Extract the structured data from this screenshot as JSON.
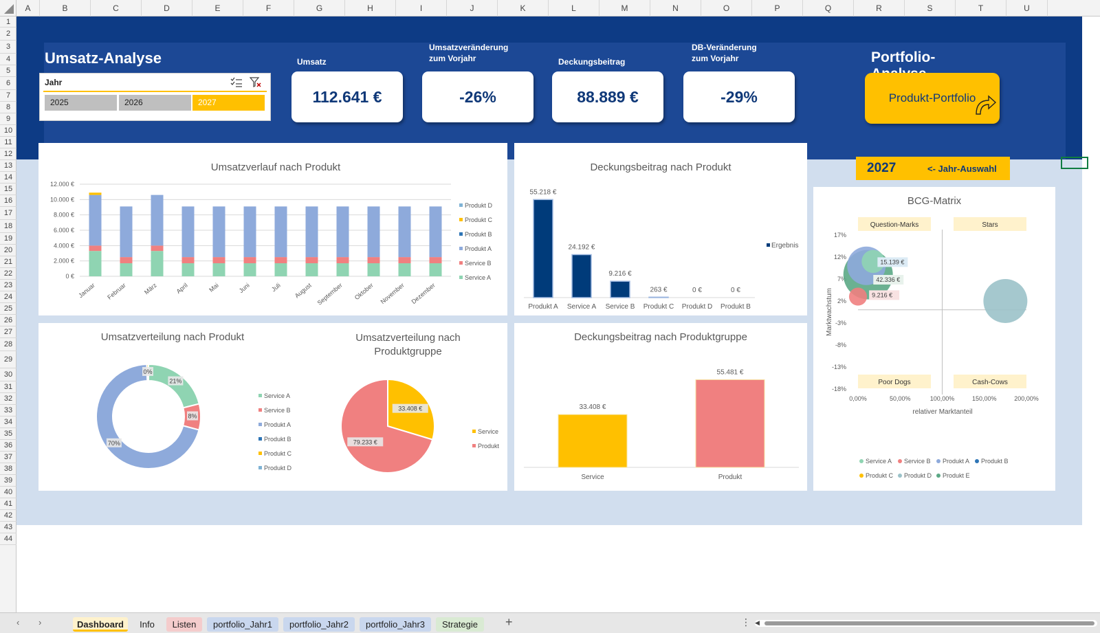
{
  "columns": [
    "A",
    "B",
    "C",
    "D",
    "E",
    "F",
    "G",
    "H",
    "I",
    "J",
    "K",
    "L",
    "M",
    "N",
    "O",
    "P",
    "Q",
    "R",
    "S",
    "T",
    "U"
  ],
  "rows": [
    "1",
    "2",
    "3",
    "4",
    "5",
    "6",
    "7",
    "8",
    "9",
    "10",
    "11",
    "12",
    "13",
    "14",
    "15",
    "16",
    "17",
    "18",
    "19",
    "20",
    "21",
    "22",
    "23",
    "24",
    "25",
    "26",
    "27",
    "28",
    "29",
    "30",
    "31",
    "32",
    "33",
    "34",
    "35",
    "36",
    "37",
    "38",
    "39",
    "40",
    "41",
    "42",
    "43",
    "44"
  ],
  "dashboard": {
    "title": "Umsatz-Analyse",
    "portfolio_title": "Portfolio-Analyse",
    "portfolio_button": "Produkt-Portfolio",
    "slicer": {
      "label": "Jahr",
      "options": [
        "2025",
        "2026",
        "2027"
      ],
      "selected": "2027"
    },
    "kpis": [
      {
        "label": "Umsatz",
        "value": "112.641 €"
      },
      {
        "label": "Umsatzveränderung zum Vorjahr",
        "value": "-26%"
      },
      {
        "label": "Deckungsbeitrag",
        "value": "88.889 €"
      },
      {
        "label": "DB-Veränderung zum Vorjahr",
        "value": "-29%"
      }
    ],
    "year_selected": "2027",
    "year_hint": "<- Jahr-Auswahl"
  },
  "colors": {
    "banner": "#0d3b85",
    "accent": "#ffc000",
    "navy": "#003b7a",
    "salmon": "#f08080",
    "green": "#8fd4b2",
    "blue_light": "#8eaadb"
  },
  "chart_data": [
    {
      "type": "bar",
      "stacked": true,
      "title": "Umsatzverlauf nach Produkt",
      "categories": [
        "Januar",
        "Februar",
        "März",
        "April",
        "Mai",
        "Juni",
        "Juli",
        "August",
        "September",
        "Oktober",
        "November",
        "Dezember"
      ],
      "yticks": [
        "0 €",
        "2.000 €",
        "4.000 €",
        "6.000 €",
        "8.000 €",
        "10.000 €",
        "12.000 €"
      ],
      "ylim": [
        0,
        12000
      ],
      "legend": "right",
      "grid": true,
      "series": [
        {
          "name": "Service A",
          "color": "#8fd4b2",
          "values": [
            3300,
            1700,
            3300,
            1700,
            1700,
            1700,
            1700,
            1700,
            1700,
            1700,
            1700,
            1700
          ]
        },
        {
          "name": "Service B",
          "color": "#f08080",
          "values": [
            700,
            800,
            700,
            800,
            800,
            800,
            800,
            800,
            800,
            800,
            800,
            800
          ]
        },
        {
          "name": "Produkt A",
          "color": "#8eaadb",
          "values": [
            6600,
            6600,
            6600,
            6600,
            6600,
            6600,
            6600,
            6600,
            6600,
            6600,
            6600,
            6600
          ]
        },
        {
          "name": "Produkt B",
          "color": "#2e75b6",
          "values": [
            0,
            0,
            0,
            0,
            0,
            0,
            0,
            0,
            0,
            0,
            0,
            0
          ]
        },
        {
          "name": "Produkt C",
          "color": "#ffc000",
          "values": [
            300,
            0,
            0,
            0,
            0,
            0,
            0,
            0,
            0,
            0,
            0,
            0
          ]
        },
        {
          "name": "Produkt D",
          "color": "#7fb3d5",
          "values": [
            0,
            0,
            0,
            0,
            0,
            0,
            0,
            0,
            0,
            0,
            0,
            0
          ]
        }
      ]
    },
    {
      "type": "bar",
      "title": "Deckungsbeitrag nach Produkt",
      "categories": [
        "Produkt A",
        "Service A",
        "Service B",
        "Produkt C",
        "Produkt D",
        "Produkt B"
      ],
      "values": [
        55218,
        24192,
        9216,
        263,
        0,
        0
      ],
      "labels": [
        "55.218 €",
        "24.192 €",
        "9.216 €",
        "263 €",
        "0 €",
        "0 €"
      ],
      "series": [
        {
          "name": "Ergebnis",
          "color": "#003b7a"
        }
      ],
      "legend": "right",
      "ylim": [
        0,
        60000
      ]
    },
    {
      "type": "pie",
      "donut": true,
      "title": "Umsatzverteilung nach Produkt",
      "slices": [
        {
          "name": "Service A",
          "value": 21,
          "label": "21%",
          "color": "#8fd4b2"
        },
        {
          "name": "Service B",
          "value": 8,
          "label": "8%",
          "color": "#f08080"
        },
        {
          "name": "Produkt A",
          "value": 70,
          "label": "70%",
          "color": "#8eaadb"
        },
        {
          "name": "Produkt B",
          "value": 0,
          "label": "",
          "color": "#2e75b6"
        },
        {
          "name": "Produkt C",
          "value": 0.5,
          "label": "0%",
          "color": "#ffc000"
        },
        {
          "name": "Produkt D",
          "value": 0,
          "label": "",
          "color": "#7fb3d5"
        }
      ],
      "legend": "right"
    },
    {
      "type": "pie",
      "title": "Umsatzverteilung nach Produktgruppe",
      "slices": [
        {
          "name": "Service",
          "value": 33408,
          "label": "33.408 €",
          "color": "#ffc000"
        },
        {
          "name": "Produkt",
          "value": 79233,
          "label": "79.233 €",
          "color": "#f08080"
        }
      ],
      "legend": "right"
    },
    {
      "type": "bar",
      "title": "Deckungsbeitrag nach Produktgruppe",
      "categories": [
        "Service",
        "Produkt"
      ],
      "values": [
        33408,
        55481
      ],
      "labels": [
        "33.408 €",
        "55.481 €"
      ],
      "colors": [
        "#ffc000",
        "#f08080"
      ],
      "ylim": [
        0,
        60000
      ]
    },
    {
      "type": "scatter",
      "bubble": true,
      "title": "BCG-Matrix",
      "xlabel": "relativer Marktanteil",
      "ylabel": "Marktwachstum",
      "xticks": [
        "0,00%",
        "50,00%",
        "100,00%",
        "150,00%",
        "200,00%"
      ],
      "yticks": [
        "-18%",
        "-13%",
        "-8%",
        "-3%",
        "2%",
        "7%",
        "12%",
        "17%"
      ],
      "xlim": [
        0,
        2
      ],
      "ylim": [
        -0.18,
        0.17
      ],
      "quadrants": [
        "Question-Marks",
        "Stars",
        "Poor Dogs",
        "Cash-Cows"
      ],
      "legend": "bottom",
      "series": [
        {
          "name": "Service A",
          "color": "#8fd4b2",
          "points": [
            {
              "x": 0.18,
              "y": 0.11,
              "size": 15139,
              "label": "15.139 €"
            }
          ]
        },
        {
          "name": "Service B",
          "color": "#f08080",
          "points": [
            {
              "x": 0.0,
              "y": 0.03,
              "size": 9216,
              "label": "9.216 €"
            }
          ]
        },
        {
          "name": "Produkt A",
          "color": "#8eaadb",
          "points": [
            {
              "x": 0.1,
              "y": 0.1,
              "size": 42336,
              "label": "42.336 €"
            }
          ]
        },
        {
          "name": "Produkt B",
          "color": "#2e75b6",
          "points": []
        },
        {
          "name": "Produkt C",
          "color": "#ffc000",
          "points": []
        },
        {
          "name": "Produkt D",
          "color": "#9bc2c9",
          "points": [
            {
              "x": 1.75,
              "y": 0.02,
              "size": 55218,
              "label": ""
            }
          ]
        },
        {
          "name": "Produkt E",
          "color": "#5ba885",
          "points": [
            {
              "x": 0.12,
              "y": 0.08,
              "size": 70000,
              "label": ""
            }
          ]
        }
      ]
    }
  ],
  "tabs": [
    {
      "label": "Dashboard",
      "color": "#fff2cc",
      "active": true
    },
    {
      "label": "Info",
      "color": "",
      "active": false
    },
    {
      "label": "Listen",
      "color": "#f4cccc",
      "active": false
    },
    {
      "label": "portfolio_Jahr1",
      "color": "#c9d7ee",
      "active": false
    },
    {
      "label": "portfolio_Jahr2",
      "color": "#c9d7ee",
      "active": false
    },
    {
      "label": "portfolio_Jahr3",
      "color": "#c9d7ee",
      "active": false
    },
    {
      "label": "Strategie",
      "color": "#d9ead3",
      "active": false
    }
  ]
}
